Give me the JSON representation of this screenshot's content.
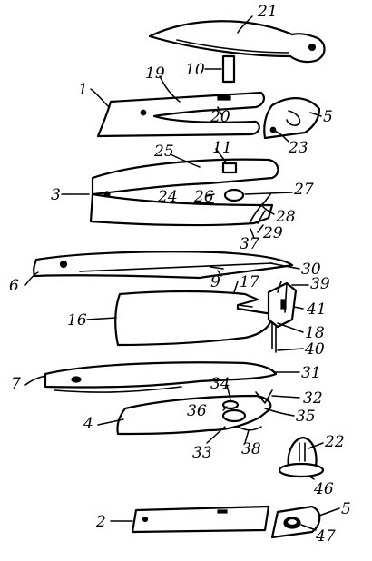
{
  "reference_numerals": {
    "n21": "21",
    "n10": "10",
    "n19": "19",
    "n1": "1",
    "n20": "20",
    "n5a": "5",
    "n23": "23",
    "n25": "25",
    "n11": "11",
    "n3": "3",
    "n24": "24",
    "n26": "26",
    "n27": "27",
    "n28": "28",
    "n37": "37",
    "n29": "29",
    "n6": "6",
    "n9": "9",
    "n30": "30",
    "n17": "17",
    "n39": "39",
    "n16": "16",
    "n41": "41",
    "n18": "18",
    "n40": "40",
    "n7": "7",
    "n31": "31",
    "n34": "34",
    "n32": "32",
    "n4": "4",
    "n36": "36",
    "n35": "35",
    "n33": "33",
    "n38": "38",
    "n22": "22",
    "n46": "46",
    "n2": "2",
    "n5b": "5",
    "n47": "47"
  }
}
